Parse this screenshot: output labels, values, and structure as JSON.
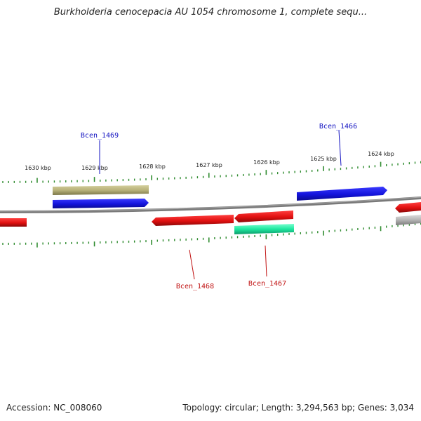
{
  "header": {
    "title": "Burkholderia cenocepacia AU 1054 chromosome 1, complete sequ..."
  },
  "footer": {
    "accession": "Accession: NC_008060",
    "summary": "Topology: circular; Length: 3,294,563 bp; Genes: 3,034"
  },
  "scale": {
    "labels": [
      "1630 kbp",
      "1629 kbp",
      "1628 kbp",
      "1627 kbp",
      "1626 kbp",
      "1625 kbp",
      "1624 kbp"
    ]
  },
  "colors": {
    "backbone": "#888888",
    "tick": "#2e8b2e",
    "forward_blue": "#1414dc",
    "reverse_red": "#e01010",
    "olive": "#b8b27a",
    "teal": "#1ee8a0",
    "gray": "#b4b4b4",
    "label_blue": "#1010c0",
    "label_red": "#c01010"
  },
  "genes": [
    {
      "name": "Bcen_1469",
      "strand": "+"
    },
    {
      "name": "Bcen_1466",
      "strand": "+"
    },
    {
      "name": "Bcen_1468",
      "strand": "-"
    },
    {
      "name": "Bcen_1467",
      "strand": "-"
    }
  ]
}
